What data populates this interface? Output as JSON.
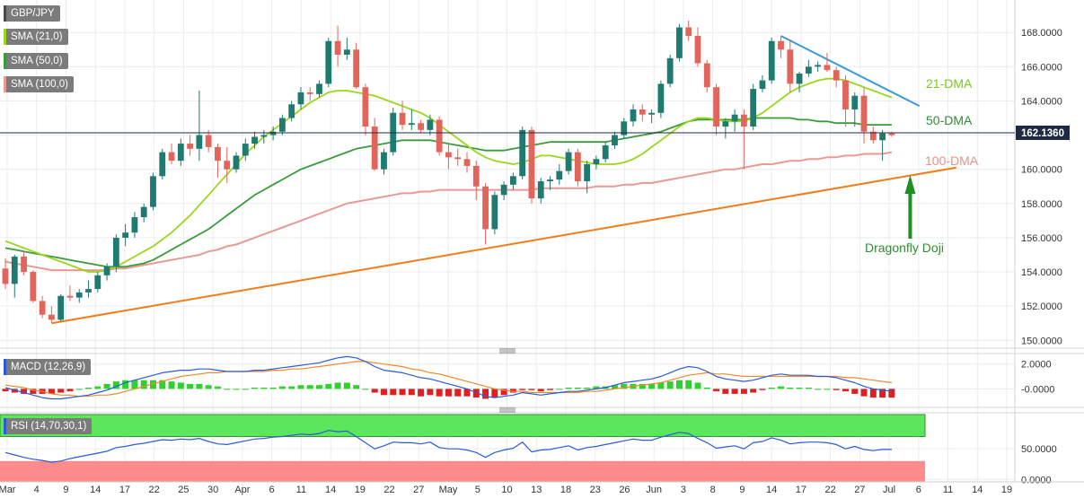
{
  "symbol": "GBP/JPY",
  "legend": [
    {
      "label": "SMA (21,0)",
      "color": "#9bd61b"
    },
    {
      "label": "SMA (50,0)",
      "color": "#3a9a3a"
    },
    {
      "label": "SMA (100,0)",
      "color": "#e79a96"
    }
  ],
  "chart_data": {
    "type": "candlestick",
    "price_axis": {
      "ticks": [
        "150.0000",
        "152.0000",
        "154.0000",
        "156.0000",
        "158.0000",
        "160.0000",
        "162.0000",
        "164.0000",
        "166.0000",
        "168.0000"
      ],
      "tick_values": [
        150,
        152,
        154,
        156,
        158,
        160,
        162,
        164,
        166,
        168
      ],
      "range": [
        149.7,
        169.9
      ],
      "last_price_label": "162.1360",
      "last_price": 162.136
    },
    "x_axis": {
      "labels": [
        "Mar",
        "4",
        "9",
        "14",
        "17",
        "22",
        "25",
        "30",
        "Apr",
        "6",
        "11",
        "14",
        "19",
        "22",
        "27",
        "May",
        "5",
        "10",
        "13",
        "18",
        "23",
        "26",
        "Jun",
        "3",
        "8",
        "9",
        "14",
        "17",
        "22",
        "27",
        "Jul",
        "6",
        "11",
        "14",
        "19"
      ]
    },
    "candles": [
      [
        154.2,
        154.8,
        153.0,
        153.3
      ],
      [
        153.3,
        155.0,
        152.5,
        154.9
      ],
      [
        154.9,
        155.2,
        153.8,
        154.0
      ],
      [
        154.0,
        154.1,
        152.2,
        152.3
      ],
      [
        152.3,
        152.6,
        151.3,
        151.5
      ],
      [
        151.5,
        152.0,
        151.0,
        151.2
      ],
      [
        151.2,
        152.7,
        151.1,
        152.6
      ],
      [
        152.6,
        153.2,
        152.3,
        152.5
      ],
      [
        152.5,
        153.0,
        152.2,
        152.8
      ],
      [
        152.8,
        153.5,
        152.5,
        153.0
      ],
      [
        153.0,
        154.0,
        152.8,
        153.8
      ],
      [
        153.8,
        154.5,
        153.5,
        154.3
      ],
      [
        154.3,
        156.2,
        154.0,
        156.0
      ],
      [
        156.0,
        156.8,
        155.5,
        156.3
      ],
      [
        156.3,
        157.5,
        156.0,
        157.2
      ],
      [
        157.2,
        158.0,
        156.9,
        157.8
      ],
      [
        157.8,
        159.8,
        157.6,
        159.6
      ],
      [
        159.6,
        161.2,
        159.4,
        161.0
      ],
      [
        161.0,
        161.5,
        160.3,
        160.5
      ],
      [
        160.5,
        161.8,
        160.2,
        161.5
      ],
      [
        161.5,
        162.0,
        160.8,
        161.2
      ],
      [
        161.2,
        164.6,
        160.5,
        162.0
      ],
      [
        162.0,
        162.3,
        161.0,
        161.3
      ],
      [
        161.3,
        161.5,
        159.5,
        160.5
      ],
      [
        160.5,
        161.3,
        159.2,
        160.0
      ],
      [
        160.0,
        161.0,
        159.8,
        160.8
      ],
      [
        160.8,
        161.8,
        160.5,
        161.5
      ],
      [
        161.5,
        162.2,
        161.2,
        161.9
      ],
      [
        161.9,
        162.3,
        161.5,
        162.0
      ],
      [
        162.0,
        162.5,
        161.7,
        162.2
      ],
      [
        162.2,
        163.2,
        162.0,
        163.0
      ],
      [
        163.0,
        164.0,
        162.8,
        163.8
      ],
      [
        163.8,
        164.8,
        163.5,
        164.5
      ],
      [
        164.5,
        164.8,
        164.0,
        164.4
      ],
      [
        164.4,
        165.2,
        164.2,
        165.0
      ],
      [
        165.0,
        167.7,
        164.8,
        167.5
      ],
      [
        167.5,
        168.4,
        166.0,
        166.7
      ],
      [
        166.7,
        167.7,
        166.4,
        167.0
      ],
      [
        167.0,
        167.4,
        164.7,
        164.8
      ],
      [
        164.8,
        165.0,
        162.0,
        162.5
      ],
      [
        162.5,
        163.0,
        159.9,
        160.0
      ],
      [
        160.0,
        161.2,
        159.7,
        161.0
      ],
      [
        161.0,
        163.6,
        160.8,
        163.3
      ],
      [
        163.3,
        164.0,
        162.3,
        162.6
      ],
      [
        162.6,
        163.5,
        162.3,
        162.7
      ],
      [
        162.7,
        162.9,
        162.1,
        162.3
      ],
      [
        162.3,
        163.2,
        162.0,
        162.9
      ],
      [
        162.9,
        163.1,
        160.8,
        161.0
      ],
      [
        161.0,
        161.5,
        160.0,
        160.7
      ],
      [
        160.7,
        161.2,
        160.2,
        160.6
      ],
      [
        160.6,
        161.0,
        159.8,
        160.2
      ],
      [
        160.2,
        160.5,
        158.2,
        159.0
      ],
      [
        159.0,
        159.2,
        155.6,
        156.5
      ],
      [
        156.5,
        158.7,
        156.2,
        158.5
      ],
      [
        158.5,
        159.3,
        158.2,
        159.1
      ],
      [
        159.1,
        159.8,
        158.8,
        159.6
      ],
      [
        159.6,
        162.5,
        159.4,
        162.3
      ],
      [
        162.3,
        162.5,
        158.0,
        158.3
      ],
      [
        158.3,
        159.5,
        158.0,
        159.3
      ],
      [
        159.3,
        159.6,
        158.8,
        159.4
      ],
      [
        159.4,
        160.3,
        159.1,
        159.9
      ],
      [
        159.9,
        161.2,
        159.7,
        161.0
      ],
      [
        161.0,
        161.2,
        159.0,
        159.3
      ],
      [
        159.3,
        160.5,
        158.6,
        160.3
      ],
      [
        160.3,
        160.8,
        160.0,
        160.6
      ],
      [
        160.6,
        161.6,
        160.4,
        161.4
      ],
      [
        161.4,
        162.2,
        161.2,
        162.0
      ],
      [
        162.0,
        163.0,
        161.8,
        162.8
      ],
      [
        162.8,
        163.8,
        162.5,
        163.5
      ],
      [
        163.5,
        163.8,
        162.8,
        163.2
      ],
      [
        163.2,
        163.5,
        162.7,
        163.3
      ],
      [
        163.3,
        165.2,
        163.0,
        165.0
      ],
      [
        165.0,
        166.7,
        164.8,
        166.5
      ],
      [
        166.5,
        168.5,
        166.3,
        168.3
      ],
      [
        168.3,
        168.7,
        167.5,
        167.8
      ],
      [
        167.8,
        168.3,
        166.0,
        166.2
      ],
      [
        166.2,
        166.4,
        164.5,
        164.8
      ],
      [
        164.8,
        165.0,
        162.0,
        162.5
      ],
      [
        162.5,
        163.0,
        161.8,
        162.8
      ],
      [
        162.8,
        163.5,
        162.2,
        163.2
      ],
      [
        163.2,
        163.5,
        160.0,
        162.5
      ],
      [
        162.5,
        165.0,
        162.3,
        164.7
      ],
      [
        164.7,
        165.5,
        164.5,
        165.2
      ],
      [
        165.2,
        167.7,
        165.0,
        167.5
      ],
      [
        167.5,
        167.8,
        166.5,
        167.0
      ],
      [
        167.0,
        167.6,
        164.5,
        165.0
      ],
      [
        165.0,
        165.7,
        164.5,
        165.6
      ],
      [
        165.6,
        166.4,
        165.4,
        166.0
      ],
      [
        166.0,
        166.3,
        165.7,
        166.1
      ],
      [
        166.1,
        166.8,
        165.7,
        165.8
      ],
      [
        165.8,
        166.0,
        164.8,
        165.2
      ],
      [
        165.2,
        165.5,
        162.5,
        163.5
      ],
      [
        163.5,
        164.5,
        162.5,
        164.3
      ],
      [
        164.3,
        164.8,
        161.5,
        162.2
      ],
      [
        162.2,
        162.5,
        161.5,
        161.7
      ],
      [
        161.7,
        162.3,
        160.5,
        162.1
      ],
      [
        162.1,
        162.2,
        161.9,
        162.0
      ]
    ],
    "sma21": [
      155.8,
      155.6,
      155.4,
      155.2,
      155.0,
      154.8,
      154.6,
      154.4,
      154.2,
      154.0,
      154.0,
      154.1,
      154.3,
      154.6,
      154.9,
      155.2,
      155.5,
      155.9,
      156.3,
      156.8,
      157.3,
      157.9,
      158.5,
      159.1,
      159.7,
      160.3,
      160.9,
      161.4,
      161.9,
      162.3,
      162.7,
      163.1,
      163.5,
      163.9,
      164.2,
      164.5,
      164.6,
      164.6,
      164.5,
      164.4,
      164.3,
      164.1,
      163.9,
      163.7,
      163.5,
      163.3,
      163.0,
      162.6,
      162.2,
      161.8,
      161.4,
      161.0,
      160.7,
      160.5,
      160.4,
      160.3,
      160.4,
      160.6,
      160.8,
      160.8,
      160.7,
      160.6,
      160.5,
      160.4,
      160.3,
      160.3,
      160.3,
      160.4,
      160.6,
      160.9,
      161.3,
      161.7,
      162.1,
      162.5,
      162.8,
      163.0,
      163.0,
      162.9,
      162.8,
      162.8,
      162.8,
      163.0,
      163.3,
      163.7,
      164.1,
      164.5,
      164.8,
      165.0,
      165.2,
      165.3,
      165.3,
      165.2,
      165.0,
      164.8,
      164.6,
      164.4,
      164.2
    ],
    "sma50": [
      155.4,
      155.3,
      155.2,
      155.1,
      155.0,
      154.9,
      154.8,
      154.7,
      154.6,
      154.5,
      154.4,
      154.3,
      154.3,
      154.3,
      154.4,
      154.5,
      154.7,
      155.0,
      155.3,
      155.6,
      155.9,
      156.2,
      156.5,
      156.9,
      157.3,
      157.7,
      158.1,
      158.5,
      158.8,
      159.1,
      159.4,
      159.7,
      160.0,
      160.2,
      160.4,
      160.6,
      160.8,
      161.0,
      161.2,
      161.3,
      161.4,
      161.5,
      161.6,
      161.7,
      161.7,
      161.7,
      161.7,
      161.6,
      161.5,
      161.4,
      161.3,
      161.2,
      161.1,
      161.1,
      161.1,
      161.2,
      161.3,
      161.4,
      161.5,
      161.6,
      161.6,
      161.6,
      161.6,
      161.6,
      161.6,
      161.6,
      161.7,
      161.8,
      161.9,
      162.0,
      162.1,
      162.2,
      162.4,
      162.6,
      162.8,
      162.9,
      162.9,
      162.9,
      162.9,
      162.9,
      162.9,
      163.0,
      163.0,
      163.0,
      163.0,
      163.0,
      162.9,
      162.9,
      162.8,
      162.8,
      162.7,
      162.7,
      162.7,
      162.6,
      162.6,
      162.6,
      162.6
    ],
    "sma100": [
      154.6,
      154.5,
      154.4,
      154.3,
      154.2,
      154.1,
      154.1,
      154.1,
      154.1,
      154.1,
      154.1,
      154.1,
      154.2,
      154.2,
      154.3,
      154.4,
      154.5,
      154.6,
      154.7,
      154.8,
      154.9,
      155.0,
      155.2,
      155.3,
      155.5,
      155.6,
      155.8,
      156.0,
      156.2,
      156.4,
      156.6,
      156.8,
      157.0,
      157.2,
      157.4,
      157.6,
      157.8,
      158.0,
      158.1,
      158.2,
      158.3,
      158.4,
      158.5,
      158.6,
      158.6,
      158.7,
      158.7,
      158.8,
      158.8,
      158.8,
      158.8,
      158.8,
      158.8,
      158.8,
      158.8,
      158.8,
      158.8,
      158.8,
      158.9,
      158.9,
      158.9,
      158.9,
      158.9,
      158.9,
      159.0,
      159.0,
      159.0,
      159.1,
      159.1,
      159.2,
      159.2,
      159.3,
      159.4,
      159.5,
      159.6,
      159.7,
      159.8,
      159.9,
      160.0,
      160.0,
      160.1,
      160.2,
      160.3,
      160.3,
      160.4,
      160.5,
      160.5,
      160.6,
      160.6,
      160.7,
      160.7,
      160.8,
      160.8,
      160.9,
      160.9,
      160.9,
      161.0
    ],
    "annotations": [
      {
        "label": "21-DMA",
        "color": "#7dc91a"
      },
      {
        "label": "50-DMA",
        "color": "#2f8f2f"
      },
      {
        "label": "100-DMA",
        "color": "#e4938f"
      },
      {
        "label": "Dragonfly Doji",
        "color": "#2c8f2c"
      }
    ],
    "trendlines": {
      "support": {
        "color": "#f07c1a",
        "points": [
          [
            5,
            151.0
          ],
          [
            103,
            160.1
          ]
        ]
      },
      "resistance": {
        "color": "#3a9ad9",
        "points": [
          [
            84,
            167.8
          ],
          [
            99,
            163.7
          ]
        ]
      }
    },
    "macd": {
      "label": "MACD (12,26,9)",
      "ticks": [
        "2.0000",
        "-0.0000"
      ],
      "tick_values": [
        2,
        0
      ],
      "range": [
        -1.2,
        2.7
      ],
      "macd_line": [
        0.1,
        -0.1,
        -0.3,
        -0.5,
        -0.7,
        -0.8,
        -0.8,
        -0.7,
        -0.6,
        -0.5,
        -0.3,
        -0.1,
        0.2,
        0.5,
        0.7,
        0.9,
        1.1,
        1.3,
        1.4,
        1.5,
        1.5,
        1.6,
        1.6,
        1.5,
        1.4,
        1.4,
        1.4,
        1.5,
        1.5,
        1.6,
        1.7,
        1.8,
        1.9,
        2.0,
        2.1,
        2.3,
        2.5,
        2.6,
        2.5,
        2.2,
        1.8,
        1.5,
        1.4,
        1.3,
        1.1,
        0.9,
        0.8,
        0.6,
        0.4,
        0.2,
        0.0,
        -0.3,
        -0.6,
        -0.7,
        -0.6,
        -0.5,
        -0.3,
        -0.4,
        -0.5,
        -0.4,
        -0.3,
        -0.2,
        -0.2,
        -0.1,
        0.0,
        0.1,
        0.3,
        0.5,
        0.6,
        0.7,
        0.8,
        1.0,
        1.3,
        1.6,
        1.8,
        1.7,
        1.4,
        1.0,
        0.8,
        0.7,
        0.6,
        0.7,
        0.9,
        1.1,
        1.2,
        1.1,
        1.1,
        1.1,
        1.0,
        1.0,
        0.9,
        0.7,
        0.5,
        0.2,
        0.0,
        -0.1,
        -0.2
      ],
      "signal_line": [
        0.3,
        0.2,
        0.1,
        -0.1,
        -0.2,
        -0.4,
        -0.5,
        -0.5,
        -0.6,
        -0.6,
        -0.5,
        -0.5,
        -0.4,
        -0.2,
        0.0,
        0.2,
        0.4,
        0.6,
        0.8,
        1.0,
        1.1,
        1.2,
        1.3,
        1.3,
        1.4,
        1.4,
        1.4,
        1.4,
        1.4,
        1.5,
        1.5,
        1.6,
        1.6,
        1.7,
        1.8,
        1.9,
        2.0,
        2.1,
        2.2,
        2.2,
        2.1,
        2.0,
        1.9,
        1.8,
        1.6,
        1.5,
        1.3,
        1.2,
        1.0,
        0.8,
        0.6,
        0.4,
        0.2,
        0.0,
        -0.1,
        -0.2,
        -0.2,
        -0.3,
        -0.3,
        -0.3,
        -0.3,
        -0.3,
        -0.3,
        -0.2,
        -0.2,
        -0.1,
        0.0,
        0.1,
        0.2,
        0.3,
        0.4,
        0.5,
        0.7,
        0.9,
        1.1,
        1.2,
        1.3,
        1.2,
        1.2,
        1.1,
        1.0,
        1.0,
        1.0,
        1.0,
        1.0,
        1.0,
        1.0,
        1.0,
        1.0,
        1.0,
        1.0,
        0.9,
        0.9,
        0.8,
        0.7,
        0.6,
        0.5
      ],
      "histogram": [
        -0.2,
        -0.3,
        -0.4,
        -0.4,
        -0.4,
        -0.4,
        -0.3,
        -0.2,
        0.0,
        0.1,
        0.2,
        0.4,
        0.6,
        0.7,
        0.7,
        0.7,
        0.7,
        0.7,
        0.6,
        0.5,
        0.4,
        0.4,
        0.3,
        0.2,
        0.0,
        0.0,
        0.0,
        0.1,
        0.1,
        0.1,
        0.2,
        0.2,
        0.3,
        0.3,
        0.3,
        0.4,
        0.5,
        0.5,
        0.3,
        0.0,
        -0.3,
        -0.5,
        -0.5,
        -0.5,
        -0.5,
        -0.6,
        -0.5,
        -0.6,
        -0.6,
        -0.6,
        -0.6,
        -0.7,
        -0.8,
        -0.7,
        -0.5,
        -0.3,
        -0.1,
        -0.1,
        -0.2,
        -0.1,
        0.0,
        0.1,
        0.1,
        0.1,
        0.2,
        0.2,
        0.3,
        0.4,
        0.4,
        0.4,
        0.4,
        0.5,
        0.6,
        0.7,
        0.7,
        0.5,
        0.1,
        -0.2,
        -0.4,
        -0.4,
        -0.4,
        -0.3,
        -0.1,
        0.1,
        0.2,
        0.1,
        0.1,
        0.1,
        0.0,
        0.0,
        -0.1,
        -0.2,
        -0.4,
        -0.6,
        -0.7,
        -0.7,
        -0.7
      ],
      "colors": {
        "line": "#2a5bd7",
        "signal": "#ef8a2e",
        "positive": "#2ed12e",
        "negative": "#e02020"
      }
    },
    "rsi": {
      "label": "RSI (14,70,30,1)",
      "ticks": [
        "50.0000",
        "0.0000"
      ],
      "tick_values": [
        50,
        0
      ],
      "range": [
        -4,
        106
      ],
      "overbought": 70,
      "oversold": 30,
      "line": [
        44,
        40,
        36,
        33,
        31,
        28,
        30,
        34,
        37,
        40,
        43,
        46,
        52,
        54,
        57,
        59,
        62,
        65,
        64,
        66,
        65,
        67,
        62,
        58,
        57,
        60,
        63,
        66,
        67,
        69,
        70,
        72,
        74,
        73,
        75,
        80,
        78,
        79,
        70,
        60,
        50,
        55,
        61,
        60,
        60,
        58,
        61,
        52,
        50,
        50,
        48,
        44,
        36,
        44,
        48,
        51,
        61,
        45,
        48,
        49,
        52,
        55,
        48,
        52,
        54,
        57,
        60,
        63,
        66,
        64,
        64,
        69,
        73,
        77,
        75,
        67,
        60,
        51,
        53,
        55,
        50,
        60,
        62,
        68,
        64,
        58,
        60,
        61,
        61,
        60,
        57,
        50,
        54,
        49,
        47,
        49,
        49
      ],
      "colors": {
        "line": "#2a5bd7",
        "upper_zone": "#5ce65c",
        "lower_zone": "#ff8c8c"
      }
    }
  }
}
